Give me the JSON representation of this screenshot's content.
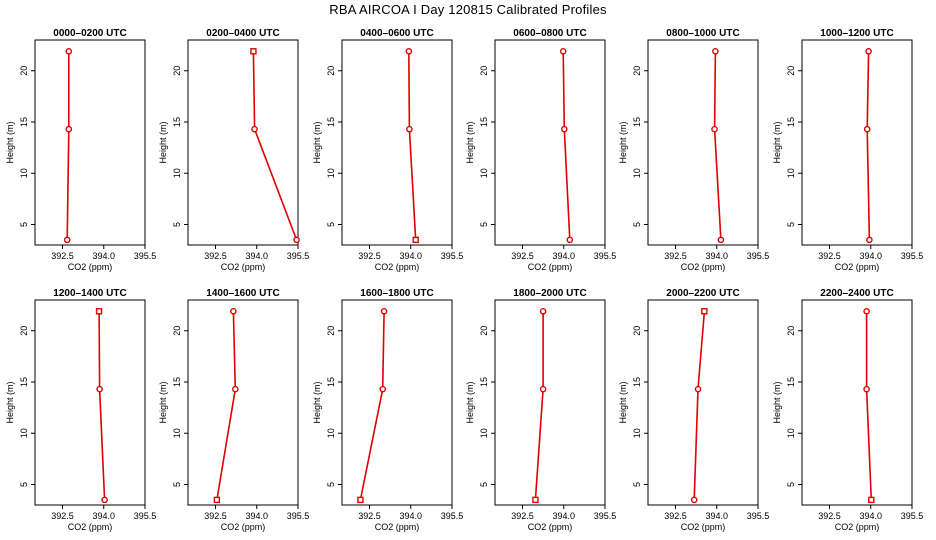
{
  "title": "RBA AIRCOA I  Day 120815  Calibrated Profiles",
  "colors": {
    "line": "#e00000",
    "axis": "#000000",
    "background": "#ffffff"
  },
  "chart_data": [
    {
      "type": "line",
      "title": "0000–0200 UTC",
      "xlabel": "CO2 (ppm)",
      "ylabel": "Height (m)",
      "xlim": [
        391.5,
        395.5
      ],
      "ylim": [
        3,
        23
      ],
      "xticks": [
        "392.5",
        "394.0",
        "395.5"
      ],
      "yticks": [
        "5",
        "10",
        "15",
        "20"
      ],
      "points": [
        {
          "x": 392.67,
          "y": 3.5
        },
        {
          "x": 392.73,
          "y": 14.3
        },
        {
          "x": 392.73,
          "y": 21.9
        }
      ],
      "markers": [
        "o",
        "o",
        "o"
      ]
    },
    {
      "type": "line",
      "title": "0200–0400 UTC",
      "xlabel": "CO2 (ppm)",
      "ylabel": "Height (m)",
      "xlim": [
        391.5,
        395.5
      ],
      "ylim": [
        3,
        23
      ],
      "xticks": [
        "392.5",
        "394.0",
        "395.5"
      ],
      "yticks": [
        "5",
        "10",
        "15",
        "20"
      ],
      "points": [
        {
          "x": 395.45,
          "y": 3.5
        },
        {
          "x": 393.92,
          "y": 14.3
        },
        {
          "x": 393.88,
          "y": 21.9
        }
      ],
      "markers": [
        "o",
        "o",
        "s"
      ]
    },
    {
      "type": "line",
      "title": "0400–0600 UTC",
      "xlabel": "CO2 (ppm)",
      "ylabel": "Height (m)",
      "xlim": [
        391.5,
        395.5
      ],
      "ylim": [
        3,
        23
      ],
      "xticks": [
        "392.5",
        "394.0",
        "395.5"
      ],
      "yticks": [
        "5",
        "10",
        "15",
        "20"
      ],
      "points": [
        {
          "x": 394.18,
          "y": 3.5
        },
        {
          "x": 393.95,
          "y": 14.3
        },
        {
          "x": 393.93,
          "y": 21.9
        }
      ],
      "markers": [
        "s",
        "o",
        "o"
      ]
    },
    {
      "type": "line",
      "title": "0600–0800 UTC",
      "xlabel": "CO2 (ppm)",
      "ylabel": "Height (m)",
      "xlim": [
        391.5,
        395.5
      ],
      "ylim": [
        3,
        23
      ],
      "xticks": [
        "392.5",
        "394.0",
        "395.5"
      ],
      "yticks": [
        "5",
        "10",
        "15",
        "20"
      ],
      "points": [
        {
          "x": 394.22,
          "y": 3.5
        },
        {
          "x": 394.02,
          "y": 14.3
        },
        {
          "x": 393.98,
          "y": 21.9
        }
      ],
      "markers": [
        "o",
        "o",
        "o"
      ]
    },
    {
      "type": "line",
      "title": "0800–1000 UTC",
      "xlabel": "CO2 (ppm)",
      "ylabel": "Height (m)",
      "xlim": [
        391.5,
        395.5
      ],
      "ylim": [
        3,
        23
      ],
      "xticks": [
        "392.5",
        "394.0",
        "395.5"
      ],
      "yticks": [
        "5",
        "10",
        "15",
        "20"
      ],
      "points": [
        {
          "x": 394.15,
          "y": 3.5
        },
        {
          "x": 393.92,
          "y": 14.3
        },
        {
          "x": 393.95,
          "y": 21.9
        }
      ],
      "markers": [
        "o",
        "o",
        "o"
      ]
    },
    {
      "type": "line",
      "title": "1000–1200 UTC",
      "xlabel": "CO2 (ppm)",
      "ylabel": "Height (m)",
      "xlim": [
        391.5,
        395.5
      ],
      "ylim": [
        3,
        23
      ],
      "xticks": [
        "392.5",
        "394.0",
        "395.5"
      ],
      "yticks": [
        "5",
        "10",
        "15",
        "20"
      ],
      "points": [
        {
          "x": 393.95,
          "y": 3.5
        },
        {
          "x": 393.87,
          "y": 14.3
        },
        {
          "x": 393.92,
          "y": 21.9
        }
      ],
      "markers": [
        "o",
        "o",
        "o"
      ]
    },
    {
      "type": "line",
      "title": "1200–1400 UTC",
      "xlabel": "CO2 (ppm)",
      "ylabel": "Height (m)",
      "xlim": [
        391.5,
        395.5
      ],
      "ylim": [
        3,
        23
      ],
      "xticks": [
        "392.5",
        "394.0",
        "395.5"
      ],
      "yticks": [
        "5",
        "10",
        "15",
        "20"
      ],
      "points": [
        {
          "x": 394.03,
          "y": 3.5
        },
        {
          "x": 393.85,
          "y": 14.3
        },
        {
          "x": 393.83,
          "y": 21.9
        }
      ],
      "markers": [
        "o",
        "o",
        "s"
      ]
    },
    {
      "type": "line",
      "title": "1400–1600 UTC",
      "xlabel": "CO2 (ppm)",
      "ylabel": "Height (m)",
      "xlim": [
        391.5,
        395.5
      ],
      "ylim": [
        3,
        23
      ],
      "xticks": [
        "392.5",
        "394.0",
        "395.5"
      ],
      "yticks": [
        "5",
        "10",
        "15",
        "20"
      ],
      "points": [
        {
          "x": 392.55,
          "y": 3.5
        },
        {
          "x": 393.22,
          "y": 14.3
        },
        {
          "x": 393.15,
          "y": 21.9
        }
      ],
      "markers": [
        "s",
        "o",
        "o"
      ]
    },
    {
      "type": "line",
      "title": "1600–1800 UTC",
      "xlabel": "CO2 (ppm)",
      "ylabel": "Height (m)",
      "xlim": [
        391.5,
        395.5
      ],
      "ylim": [
        3,
        23
      ],
      "xticks": [
        "392.5",
        "394.0",
        "395.5"
      ],
      "yticks": [
        "5",
        "10",
        "15",
        "20"
      ],
      "points": [
        {
          "x": 392.17,
          "y": 3.5
        },
        {
          "x": 392.98,
          "y": 14.3
        },
        {
          "x": 393.03,
          "y": 21.9
        }
      ],
      "markers": [
        "s",
        "o",
        "o"
      ]
    },
    {
      "type": "line",
      "title": "1800–2000 UTC",
      "xlabel": "CO2 (ppm)",
      "ylabel": "Height (m)",
      "xlim": [
        391.5,
        395.5
      ],
      "ylim": [
        3,
        23
      ],
      "xticks": [
        "392.5",
        "394.0",
        "395.5"
      ],
      "yticks": [
        "5",
        "10",
        "15",
        "20"
      ],
      "points": [
        {
          "x": 392.97,
          "y": 3.5
        },
        {
          "x": 393.25,
          "y": 14.3
        },
        {
          "x": 393.25,
          "y": 21.9
        }
      ],
      "markers": [
        "s",
        "o",
        "o"
      ]
    },
    {
      "type": "line",
      "title": "2000–2200 UTC",
      "xlabel": "CO2 (ppm)",
      "ylabel": "Height (m)",
      "xlim": [
        391.5,
        395.5
      ],
      "ylim": [
        3,
        23
      ],
      "xticks": [
        "392.5",
        "394.0",
        "395.5"
      ],
      "yticks": [
        "5",
        "10",
        "15",
        "20"
      ],
      "points": [
        {
          "x": 393.18,
          "y": 3.5
        },
        {
          "x": 393.32,
          "y": 14.3
        },
        {
          "x": 393.55,
          "y": 21.9
        }
      ],
      "markers": [
        "o",
        "o",
        "s"
      ]
    },
    {
      "type": "line",
      "title": "2200–2400 UTC",
      "xlabel": "CO2 (ppm)",
      "ylabel": "Height (m)",
      "xlim": [
        391.5,
        395.5
      ],
      "ylim": [
        3,
        23
      ],
      "xticks": [
        "392.5",
        "394.0",
        "395.5"
      ],
      "yticks": [
        "5",
        "10",
        "15",
        "20"
      ],
      "points": [
        {
          "x": 394.02,
          "y": 3.5
        },
        {
          "x": 393.85,
          "y": 14.3
        },
        {
          "x": 393.85,
          "y": 21.9
        }
      ],
      "markers": [
        "s",
        "o",
        "o"
      ]
    }
  ]
}
